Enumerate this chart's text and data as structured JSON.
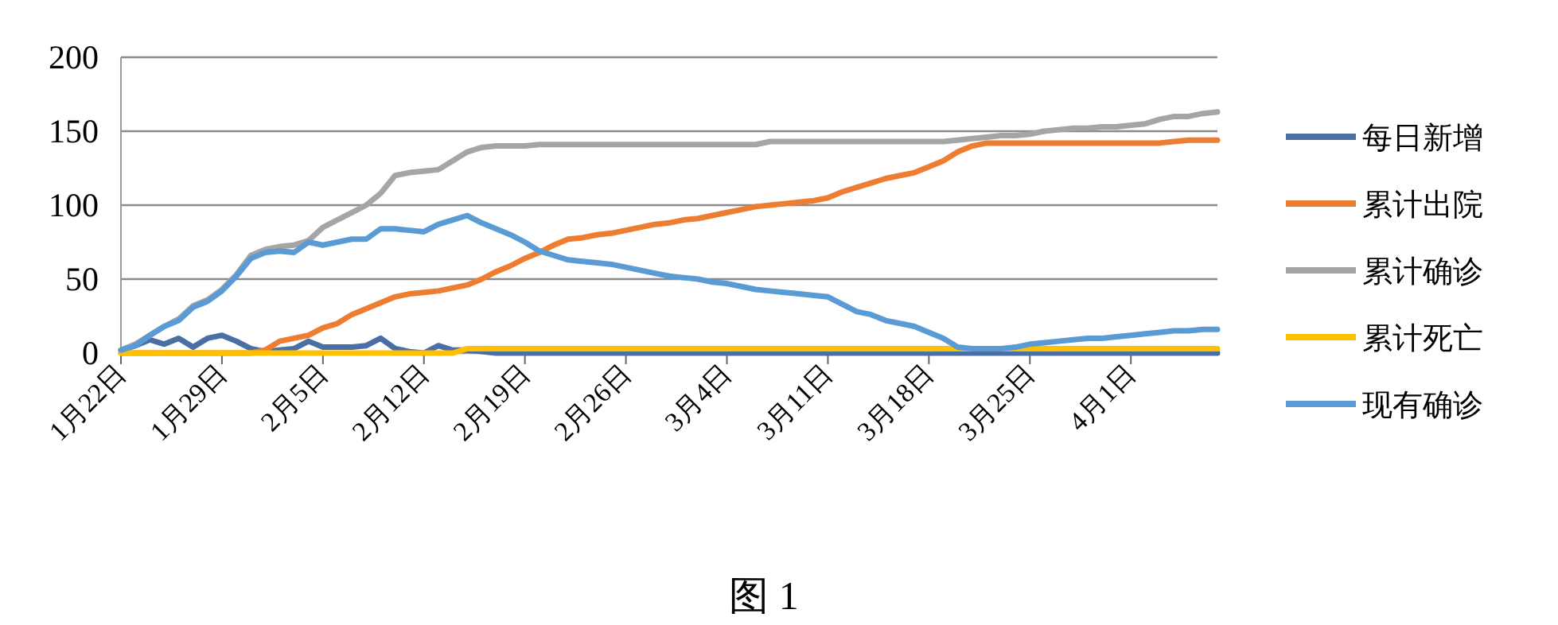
{
  "chart_data": {
    "type": "line",
    "categories": [
      "1月22日",
      null,
      null,
      null,
      null,
      null,
      null,
      "1月29日",
      null,
      null,
      null,
      null,
      null,
      null,
      "2月5日",
      null,
      null,
      null,
      null,
      null,
      null,
      "2月12日",
      null,
      null,
      null,
      null,
      null,
      null,
      "2月19日",
      null,
      null,
      null,
      null,
      null,
      null,
      "2月26日",
      null,
      null,
      null,
      null,
      null,
      null,
      "3月4日",
      null,
      null,
      null,
      null,
      null,
      null,
      "3月11日",
      null,
      null,
      null,
      null,
      null,
      null,
      "3月18日",
      null,
      null,
      null,
      null,
      null,
      null,
      "3月25日",
      null,
      null,
      null,
      null,
      null,
      null,
      "4月1日",
      null,
      null,
      null,
      null,
      null,
      null
    ],
    "series": [
      {
        "name": "每日新增",
        "color": "#4a6fa5",
        "values": [
          2,
          5,
          9,
          6,
          10,
          4,
          10,
          12,
          8,
          3,
          1,
          2,
          3,
          8,
          4,
          4,
          4,
          5,
          10,
          3,
          1,
          0,
          5,
          2,
          2,
          1,
          0,
          0,
          0,
          0,
          0,
          0,
          0,
          0,
          0,
          0,
          0,
          0,
          0,
          0,
          0,
          0,
          0,
          0,
          0,
          0,
          0,
          0,
          0,
          0,
          0,
          0,
          0,
          0,
          0,
          0,
          0,
          0,
          0,
          0,
          0,
          0,
          0,
          0,
          0,
          0,
          0,
          0,
          0,
          0,
          0,
          0,
          0,
          0,
          0,
          0,
          0
        ]
      },
      {
        "name": "累计出院",
        "color": "#ed7d31",
        "values": [
          0,
          0,
          0,
          0,
          0,
          0,
          0,
          0,
          0,
          0,
          2,
          8,
          10,
          12,
          17,
          20,
          26,
          30,
          34,
          38,
          40,
          41,
          42,
          44,
          46,
          50,
          55,
          59,
          64,
          68,
          73,
          77,
          78,
          80,
          81,
          83,
          85,
          87,
          88,
          90,
          91,
          93,
          95,
          97,
          99,
          100,
          101,
          102,
          103,
          105,
          109,
          112,
          115,
          118,
          120,
          122,
          126,
          130,
          136,
          140,
          142,
          142,
          142,
          142,
          142,
          142,
          142,
          142,
          142,
          142,
          142,
          142,
          142,
          143,
          144,
          144,
          144
        ]
      },
      {
        "name": "累计确诊",
        "color": "#a5a5a5",
        "values": [
          2,
          6,
          12,
          18,
          23,
          32,
          36,
          43,
          53,
          66,
          70,
          72,
          73,
          76,
          85,
          90,
          95,
          100,
          108,
          120,
          122,
          123,
          124,
          130,
          136,
          139,
          140,
          140,
          140,
          141,
          141,
          141,
          141,
          141,
          141,
          141,
          141,
          141,
          141,
          141,
          141,
          141,
          141,
          141,
          141,
          143,
          143,
          143,
          143,
          143,
          143,
          143,
          143,
          143,
          143,
          143,
          143,
          143,
          144,
          145,
          146,
          147,
          147,
          148,
          150,
          151,
          152,
          152,
          153,
          153,
          154,
          155,
          158,
          160,
          160,
          162,
          163
        ]
      },
      {
        "name": "累计死亡",
        "color": "#ffc000",
        "values": [
          0,
          0,
          0,
          0,
          0,
          0,
          0,
          0,
          0,
          0,
          0,
          0,
          0,
          0,
          0,
          0,
          0,
          0,
          0,
          0,
          0,
          0,
          0,
          0,
          3,
          3,
          3,
          3,
          3,
          3,
          3,
          3,
          3,
          3,
          3,
          3,
          3,
          3,
          3,
          3,
          3,
          3,
          3,
          3,
          3,
          3,
          3,
          3,
          3,
          3,
          3,
          3,
          3,
          3,
          3,
          3,
          3,
          3,
          3,
          3,
          3,
          3,
          3,
          3,
          3,
          3,
          3,
          3,
          3,
          3,
          3,
          3,
          3,
          3,
          3,
          3,
          3
        ]
      },
      {
        "name": "现有确诊",
        "color": "#5b9bd5",
        "values": [
          2,
          5,
          12,
          18,
          22,
          31,
          35,
          42,
          52,
          64,
          68,
          69,
          68,
          75,
          73,
          75,
          77,
          77,
          84,
          84,
          83,
          82,
          87,
          90,
          93,
          88,
          84,
          80,
          75,
          69,
          66,
          63,
          62,
          61,
          60,
          58,
          56,
          54,
          52,
          51,
          50,
          48,
          47,
          45,
          43,
          42,
          41,
          40,
          39,
          38,
          33,
          28,
          26,
          22,
          20,
          18,
          14,
          10,
          4,
          3,
          3,
          3,
          4,
          6,
          7,
          8,
          9,
          10,
          10,
          11,
          12,
          13,
          14,
          15,
          15,
          16,
          16
        ]
      }
    ],
    "ylim": [
      0,
      200
    ],
    "yticks": [
      0,
      50,
      100,
      150,
      200
    ],
    "grid": "y",
    "legend": "right",
    "marker": "none",
    "line_style": "solid",
    "annotations": [
      "图 1"
    ]
  }
}
